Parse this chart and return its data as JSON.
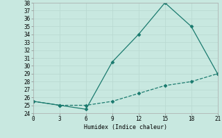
{
  "x": [
    0,
    3,
    6,
    9,
    12,
    15,
    18,
    21
  ],
  "y_solid": [
    25.5,
    25.0,
    24.5,
    30.5,
    34.0,
    38.0,
    35.0,
    29.0
  ],
  "y_dashed": [
    25.5,
    25.0,
    25.0,
    25.5,
    26.5,
    27.5,
    28.0,
    29.0
  ],
  "line_color": "#1a7a6e",
  "bg_color": "#c8e8e0",
  "xlabel": "Humidex (Indice chaleur)",
  "xlim": [
    0,
    21
  ],
  "ylim": [
    24,
    38
  ],
  "xticks": [
    0,
    3,
    6,
    9,
    12,
    15,
    18,
    21
  ],
  "yticks": [
    24,
    25,
    26,
    27,
    28,
    29,
    30,
    31,
    32,
    33,
    34,
    35,
    36,
    37,
    38
  ],
  "marker": "D",
  "markersize": 2.5,
  "linewidth": 0.9
}
